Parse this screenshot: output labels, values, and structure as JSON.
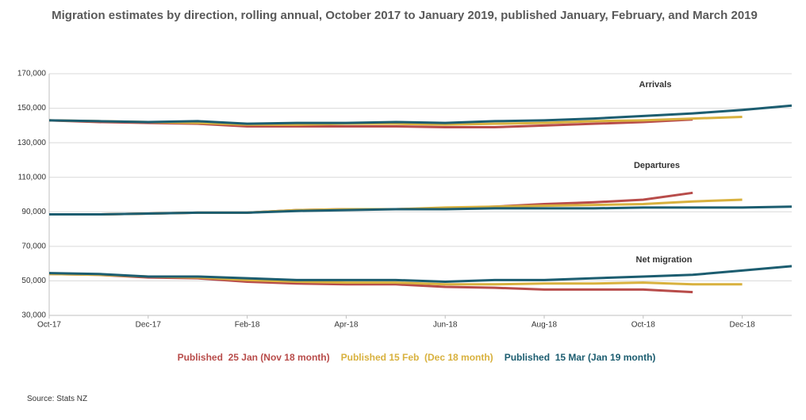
{
  "chart_data": {
    "type": "line",
    "title": "Migration estimates by direction, rolling annual, October 2017 to January 2019, published January, February, and March 2019",
    "categories": [
      "Oct-17",
      null,
      "Dec-17",
      null,
      "Feb-18",
      null,
      "Apr-18",
      null,
      "Jun-18",
      null,
      "Aug-18",
      null,
      "Oct-18",
      null,
      "Dec-18",
      null
    ],
    "ylim": [
      30000,
      170000
    ],
    "yticks": [
      {
        "value": 30000,
        "label": "30,000"
      },
      {
        "value": 50000,
        "label": "50,000"
      },
      {
        "value": 70000,
        "label": "70,000"
      },
      {
        "value": 90000,
        "label": "90,000"
      },
      {
        "value": 110000,
        "label": "110,000"
      },
      {
        "value": 130000,
        "label": "130,000"
      },
      {
        "value": 150000,
        "label": "150,000"
      },
      {
        "value": 170000,
        "label": "170,000"
      }
    ],
    "grid": true,
    "panels": [
      "Arrivals",
      "Departures",
      "Net migration"
    ],
    "series": [
      {
        "name": "Published  25 Jan (Nov 18 month)",
        "color": "#b84c4a",
        "values": [
          [
            143000,
            142000,
            141500,
            141000,
            139500,
            139500,
            139500,
            139500,
            139000,
            139000,
            140000,
            141000,
            142000,
            143500,
            null,
            null
          ],
          [
            88500,
            88500,
            89000,
            89500,
            89500,
            91000,
            91500,
            91500,
            92000,
            93000,
            94500,
            95500,
            97000,
            101000,
            null,
            null
          ],
          [
            54000,
            53500,
            52000,
            51500,
            49500,
            48500,
            48000,
            48000,
            46500,
            46000,
            45000,
            45000,
            45000,
            43500,
            null,
            null
          ]
        ]
      },
      {
        "name": "Published 15 Feb  (Dec 18 month)",
        "color": "#d8b13e",
        "values": [
          [
            143000,
            142500,
            142000,
            141500,
            140500,
            140500,
            141000,
            141000,
            140500,
            141000,
            141500,
            142500,
            143000,
            144000,
            145000,
            null
          ],
          [
            88500,
            88500,
            89000,
            89500,
            89500,
            91000,
            91500,
            91500,
            92500,
            93000,
            93500,
            94000,
            94500,
            96000,
            97000,
            null
          ],
          [
            54000,
            53500,
            52500,
            52000,
            50500,
            49500,
            49000,
            49000,
            48000,
            48000,
            48500,
            48500,
            49000,
            48000,
            48000,
            null
          ]
        ]
      },
      {
        "name": "Published  15 Mar (Jan 19 month)",
        "color": "#1c5d70",
        "values": [
          [
            143000,
            142500,
            142000,
            142500,
            141000,
            141500,
            141500,
            142000,
            141500,
            142500,
            143000,
            144000,
            145500,
            147000,
            149000,
            151500
          ],
          [
            88500,
            88500,
            89000,
            89500,
            89500,
            90500,
            91000,
            91500,
            91500,
            92000,
            92000,
            92000,
            92500,
            92500,
            92500,
            93000
          ],
          [
            54500,
            54000,
            52500,
            52500,
            51500,
            50500,
            50500,
            50500,
            49500,
            50500,
            50500,
            51500,
            52500,
            53500,
            56000,
            58500
          ]
        ]
      }
    ],
    "source": "Source: Stats NZ"
  }
}
